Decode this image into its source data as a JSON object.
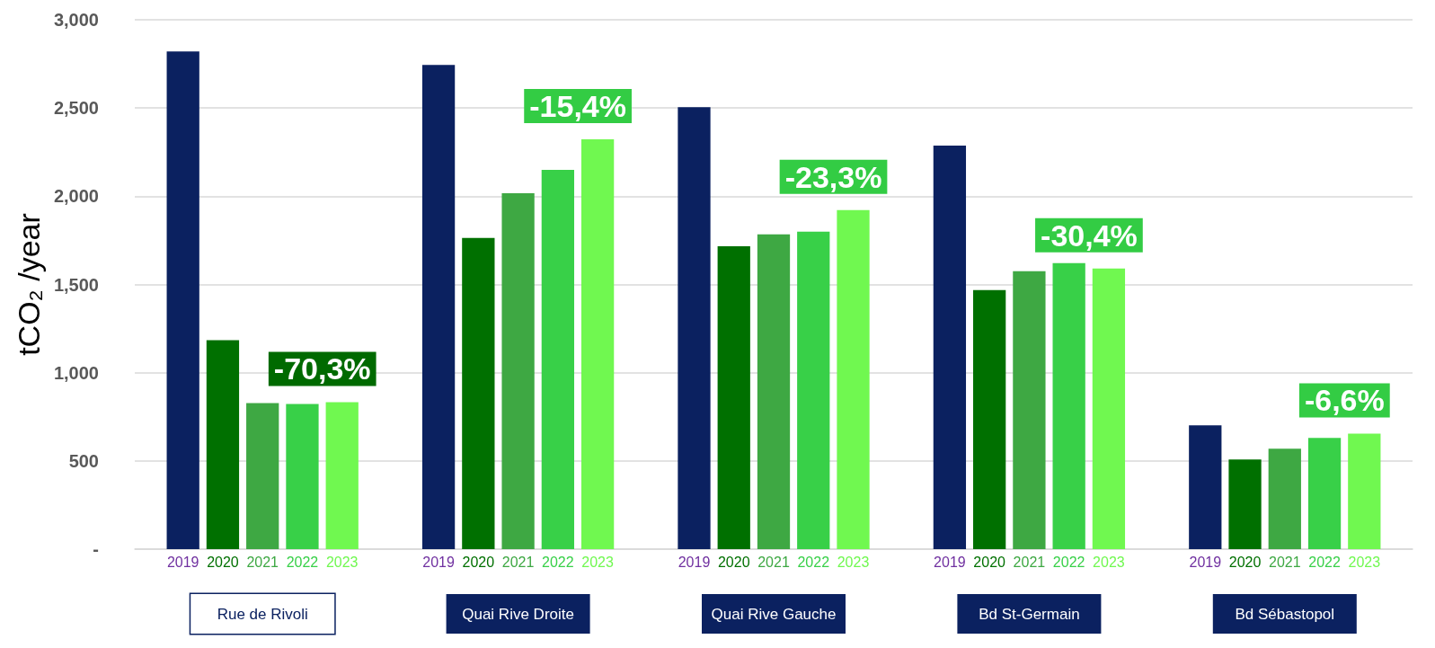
{
  "chart_data": {
    "type": "bar",
    "ylabel": "tCO₂ /year",
    "categories": [
      "Rue de Rivoli",
      "Quai Rive Droite",
      "Quai Rive Gauche",
      "Bd St-Germain",
      "Bd Sébastopol"
    ],
    "series": [
      {
        "name": "2019",
        "color": "#0b2160",
        "values": [
          2820,
          2744,
          2505,
          2287,
          701
        ]
      },
      {
        "name": "2020",
        "color": "#007000",
        "values": [
          1184,
          1763,
          1717,
          1468,
          508
        ]
      },
      {
        "name": "2021",
        "color": "#3ea843",
        "values": [
          828,
          2017,
          1784,
          1575,
          569
        ]
      },
      {
        "name": "2022",
        "color": "#38d048",
        "values": [
          823,
          2149,
          1799,
          1621,
          630
        ]
      },
      {
        "name": "2023",
        "color": "#70f850",
        "values": [
          833,
          2322,
          1921,
          1590,
          655
        ]
      }
    ],
    "ylim": [
      0,
      3000
    ],
    "yticks": [
      {
        "value": 0,
        "label": "-"
      },
      {
        "value": 500,
        "label": "500"
      },
      {
        "value": 1000,
        "label": "1,000"
      },
      {
        "value": 1500,
        "label": "1,500"
      },
      {
        "value": 2000,
        "label": "2,000"
      },
      {
        "value": 2500,
        "label": "2,500"
      },
      {
        "value": 3000,
        "label": "3,000"
      }
    ],
    "grid": "y",
    "annotations": [
      "-70,3%",
      "-15,4%",
      "-23,3%",
      "-30,4%",
      "-6,6%"
    ]
  }
}
